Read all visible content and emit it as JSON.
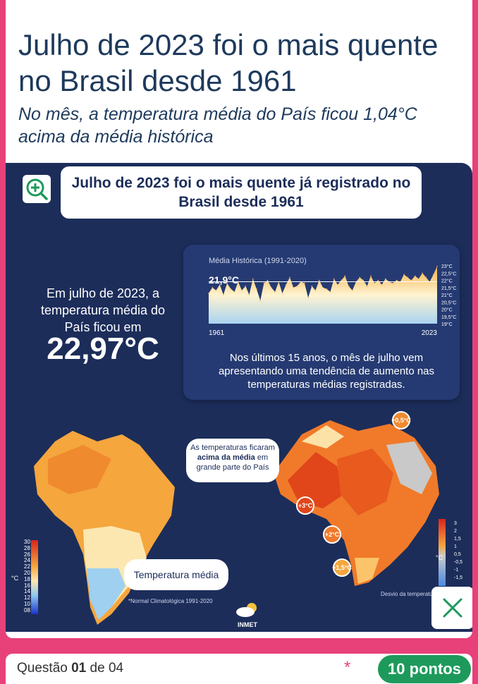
{
  "article": {
    "headline": "Julho de 2023 foi o mais quente no Brasil desde 1961",
    "subheadline": "No mês, a temperatura média do País ficou 1,04°C acima da média histórica"
  },
  "infographic": {
    "title": "Julho de 2023 foi o mais quente já registrado no Brasil desde 1961",
    "left_text": "Em julho de 2023, a temperatura média do País ficou em",
    "big_temperature": "22,97°C",
    "trend_text": "Nos últimos 15 anos, o mês de julho vem apresentando uma tendência de aumento nas temperaturas médias registradas.",
    "callout_above_avg_pre": "As temperaturas ficaram",
    "callout_above_avg_bold": "acima da média",
    "callout_above_avg_post": "em grande parte do País",
    "avg_temp_label": "Temperatura média",
    "normal_note": "*Normal Climatológica 1991-2020",
    "deviation_label": "Desvio da temperatura",
    "badges": [
      "+0,5°C",
      "+3°C",
      "+2°C",
      "+1,5°C"
    ],
    "logo_text": "INMET",
    "unit_label": "°C",
    "legend_left": [
      "30",
      "28",
      "26",
      "24",
      "22",
      "20",
      "18",
      "16",
      "14",
      "12",
      "10",
      "08"
    ],
    "legend_right": [
      "3",
      "2",
      "1,5",
      "1",
      "0,5",
      "-0,5",
      "-1",
      "-1,5"
    ]
  },
  "chart_data": {
    "type": "area",
    "title": "Média Histórica (1991-2020)",
    "reference_label": "21,9°C",
    "reference_value": 21.9,
    "x_start_label": "1961",
    "x_end_label": "2023",
    "x": [
      1961,
      1962,
      1963,
      1964,
      1965,
      1966,
      1967,
      1968,
      1969,
      1970,
      1971,
      1972,
      1973,
      1974,
      1975,
      1976,
      1977,
      1978,
      1979,
      1980,
      1981,
      1982,
      1983,
      1984,
      1985,
      1986,
      1987,
      1988,
      1989,
      1990,
      1991,
      1992,
      1993,
      1994,
      1995,
      1996,
      1997,
      1998,
      1999,
      2000,
      2001,
      2002,
      2003,
      2004,
      2005,
      2006,
      2007,
      2008,
      2009,
      2010,
      2011,
      2012,
      2013,
      2014,
      2015,
      2016,
      2017,
      2018,
      2019,
      2020,
      2021,
      2022,
      2023
    ],
    "values": [
      21.1,
      21.5,
      21.3,
      21.7,
      21.0,
      21.8,
      21.4,
      21.2,
      21.9,
      21.3,
      21.6,
      21.0,
      22.1,
      21.4,
      20.6,
      21.8,
      22.0,
      21.5,
      21.2,
      21.9,
      21.1,
      21.7,
      22.2,
      21.5,
      21.6,
      21.9,
      21.8,
      20.8,
      21.6,
      21.3,
      22.0,
      21.5,
      21.4,
      21.2,
      22.1,
      21.7,
      22.0,
      22.3,
      21.6,
      21.3,
      21.9,
      22.2,
      22.0,
      21.6,
      22.3,
      21.8,
      22.0,
      21.7,
      22.1,
      21.9,
      21.8,
      22.0,
      21.9,
      22.4,
      22.2,
      22.0,
      22.3,
      22.1,
      22.5,
      22.2,
      21.9,
      22.4,
      22.97
    ],
    "ylim": [
      19,
      23
    ],
    "yticks": [
      "23°C",
      "22,5°C",
      "22°C",
      "21,5°C",
      "21°C",
      "20,5°C",
      "20°C",
      "19,5°C",
      "19°C"
    ],
    "ytick_values": [
      23,
      22.5,
      22,
      21.5,
      21,
      20.5,
      20,
      19.5,
      19
    ]
  },
  "footer": {
    "question_prefix": "Questão",
    "question_number": "01",
    "question_suffix": "de 04",
    "required_mark": "*",
    "points": "10 pontos"
  },
  "colors": {
    "accent": "#e8417a",
    "navy": "#1c2d5a",
    "green": "#1d9a5b"
  }
}
